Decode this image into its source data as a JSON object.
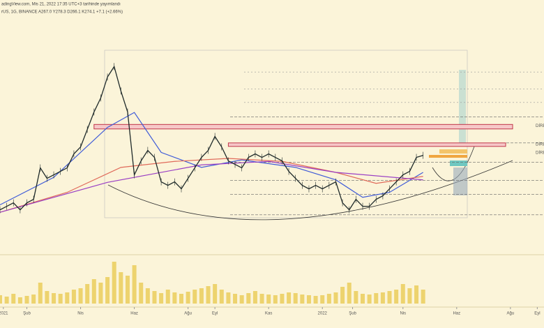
{
  "header": {
    "line1": "adingView.com, Mis 21, 2022 17:35 UTC+3 tarihinde yayımlandı",
    "line2": "rUS, 1G, BINANCE A267.0 Y278.3 D266.1 K274.1 +7.1 (+2.66%)"
  },
  "chart_data": {
    "type": "line",
    "color": "#1f2a2a",
    "values": [
      165,
      172,
      179,
      165,
      179,
      186,
      249,
      228,
      235,
      242,
      249,
      277,
      291,
      326,
      361,
      389,
      431,
      452,
      403,
      361,
      235,
      263,
      284,
      270,
      221,
      214,
      221,
      207,
      228,
      249,
      270,
      284,
      312,
      291,
      263,
      256,
      249,
      270,
      277,
      270,
      277,
      270,
      263,
      242,
      228,
      214,
      207,
      214,
      207,
      214,
      221,
      179,
      165,
      186,
      172,
      172,
      186,
      193,
      207,
      221,
      235,
      242,
      270,
      274
    ],
    "volume": [
      12,
      10,
      14,
      9,
      11,
      13,
      30,
      18,
      15,
      14,
      16,
      20,
      22,
      28,
      35,
      30,
      38,
      60,
      45,
      40,
      55,
      30,
      22,
      18,
      15,
      20,
      16,
      14,
      17,
      20,
      22,
      25,
      28,
      20,
      16,
      14,
      12,
      15,
      18,
      14,
      13,
      12,
      14,
      16,
      15,
      13,
      12,
      11,
      12,
      14,
      16,
      24,
      30,
      18,
      14,
      13,
      15,
      16,
      18,
      20,
      28,
      22,
      26,
      20
    ],
    "volume_color": "#e8c84a",
    "overlays": [
      {
        "color": "#3f5bd8",
        "x": [
          0,
          8,
          16,
          20,
          24,
          30,
          36,
          44,
          50,
          54,
          58,
          63
        ],
        "values": [
          175,
          230,
          330,
          360,
          280,
          250,
          265,
          250,
          225,
          190,
          200,
          240
        ]
      },
      {
        "color": "#e06a5a",
        "x": [
          0,
          10,
          18,
          26,
          34,
          42,
          50,
          56,
          63
        ],
        "values": [
          160,
          200,
          250,
          262,
          268,
          262,
          240,
          218,
          232
        ]
      },
      {
        "color": "#9a3fc4",
        "x": [
          0,
          16,
          30,
          40,
          50,
          63
        ],
        "values": [
          160,
          220,
          255,
          262,
          240,
          225
        ]
      }
    ],
    "zones": [
      {
        "from": 14,
        "low": 327,
        "high": 336
      },
      {
        "from": 34,
        "low": 292,
        "high": 299
      }
    ],
    "levels": [
      441,
      407,
      380,
      351,
      299,
      260,
      224,
      196,
      155
    ],
    "annotations": [
      "DİRE",
      "DİRE",
      "DİRE"
    ],
    "xlim": [
      0,
      81
    ],
    "ylim": [
      110,
      500
    ],
    "xticks": [
      {
        "value": 0.5,
        "label": "2021"
      },
      {
        "value": 4,
        "label": "Şub"
      },
      {
        "value": 12,
        "label": "Nis"
      },
      {
        "value": 20,
        "label": "Haz"
      },
      {
        "value": 28,
        "label": "Ağu"
      },
      {
        "value": 32,
        "label": "Eyl"
      },
      {
        "value": 40,
        "label": "Kas"
      },
      {
        "value": 48,
        "label": "2022"
      },
      {
        "value": 52.5,
        "label": "Şub"
      },
      {
        "value": 60,
        "label": "Nis"
      },
      {
        "value": 68,
        "label": "Haz"
      },
      {
        "value": 76,
        "label": "Ağu"
      },
      {
        "value": 80,
        "label": "Eyl"
      }
    ]
  }
}
